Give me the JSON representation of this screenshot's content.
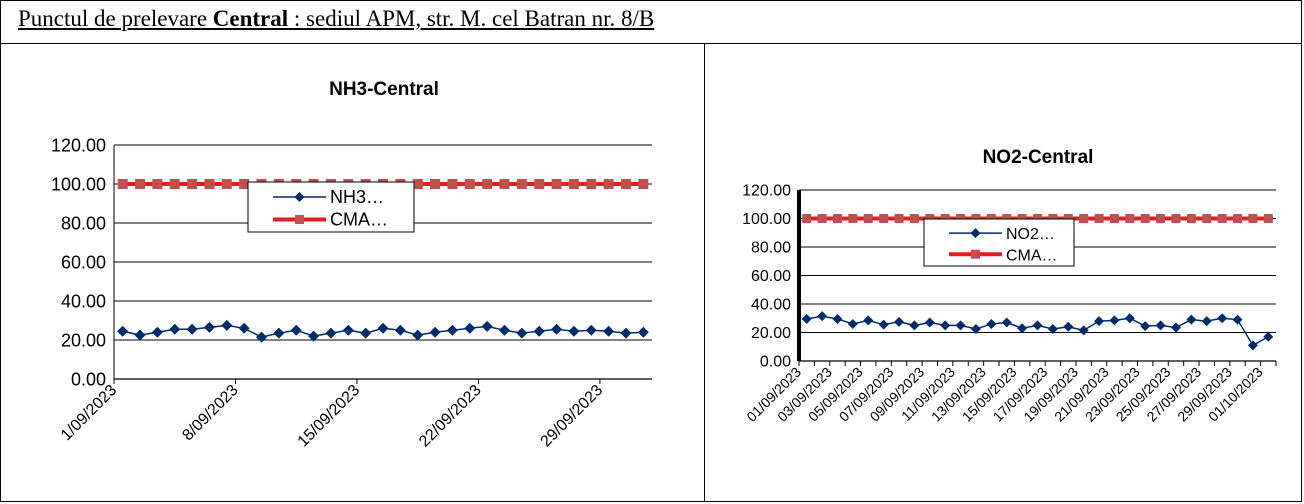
{
  "header": {
    "prefix": "Punctul de prelevare ",
    "bold": "Central",
    "suffix": " : sediul APM, str. M. cel Batran nr. 8/B"
  },
  "colors": {
    "series_main": "#002B6B",
    "series_limit": "#E02020",
    "limit_marker": "#C05050",
    "grid": "#000000"
  },
  "chart_data": [
    {
      "type": "line",
      "title": "NH3-Central",
      "ylim": [
        0,
        120
      ],
      "yticks": [
        "0.00",
        "20.00",
        "40.00",
        "60.00",
        "80.00",
        "100.00",
        "120.00"
      ],
      "xtick_labels": [
        "1/09/2023",
        "8/09/2023",
        "15/09/2023",
        "22/09/2023",
        "29/09/2023"
      ],
      "legend": [
        "NH3…",
        "CMA…"
      ],
      "legend_position": "top-center",
      "grid": true,
      "series": [
        {
          "name": "NH3…",
          "values": [
            24.5,
            22.5,
            24,
            25.5,
            25.5,
            26.5,
            27.5,
            26,
            21.5,
            23.5,
            25,
            22,
            23.5,
            25,
            23.5,
            26,
            25,
            22.5,
            24,
            25,
            26,
            27,
            25,
            23.5,
            24.5,
            25.5,
            24.5,
            25,
            24.5,
            23.5,
            24
          ]
        },
        {
          "name": "CMA…",
          "values": [
            100,
            100,
            100,
            100,
            100,
            100,
            100,
            100,
            100,
            100,
            100,
            100,
            100,
            100,
            100,
            100,
            100,
            100,
            100,
            100,
            100,
            100,
            100,
            100,
            100,
            100,
            100,
            100,
            100,
            100,
            100
          ]
        }
      ]
    },
    {
      "type": "line",
      "title": "NO2-Central",
      "ylim": [
        0,
        120
      ],
      "yticks": [
        "0.00",
        "20.00",
        "40.00",
        "60.00",
        "80.00",
        "100.00",
        "120.00"
      ],
      "xtick_labels": [
        "01/09/2023",
        "03/09/2023",
        "05/09/2023",
        "07/09/2023",
        "09/09/2023",
        "11/09/2023",
        "13/09/2023",
        "15/09/2023",
        "17/09/2023",
        "19/09/2023",
        "21/09/2023",
        "23/09/2023",
        "25/09/2023",
        "27/09/2023",
        "29/09/2023",
        "01/10/2023"
      ],
      "legend": [
        "NO2…",
        "CMA…"
      ],
      "legend_position": "top-center",
      "grid": true,
      "series": [
        {
          "name": "NO2…",
          "values": [
            29.5,
            31.5,
            29.5,
            26,
            28.5,
            25.5,
            27.5,
            25,
            27,
            25,
            25,
            22.5,
            26,
            27,
            23,
            25,
            22.5,
            24,
            21.5,
            28,
            28.5,
            30,
            24.5,
            25,
            23.5,
            29,
            28,
            30,
            29,
            11,
            17
          ]
        },
        {
          "name": "CMA…",
          "values": [
            100,
            100,
            100,
            100,
            100,
            100,
            100,
            100,
            100,
            100,
            100,
            100,
            100,
            100,
            100,
            100,
            100,
            100,
            100,
            100,
            100,
            100,
            100,
            100,
            100,
            100,
            100,
            100,
            100,
            100,
            100
          ]
        }
      ]
    }
  ]
}
